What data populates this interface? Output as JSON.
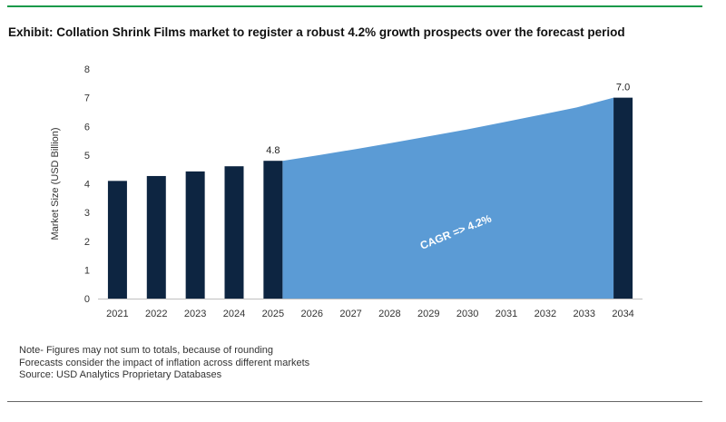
{
  "title": "Exhibit: Collation Shrink Films market to register a robust 4.2% growth prospects over the forecast period",
  "notes": [
    "Note- Figures may not sum to totals, because of rounding",
    "Forecasts consider the impact of inflation across different markets",
    "Source: USD Analytics Proprietary Databases"
  ],
  "colors": {
    "bar": "#0d2541",
    "area": "#5b9bd5",
    "rule": "#1a9a4a",
    "axis_text": "#333333"
  },
  "chart_data": {
    "type": "bar",
    "title": "Exhibit: Collation Shrink Films market to register a robust 4.2% growth prospects over the forecast period",
    "xlabel": "",
    "ylabel": "Market Size (USD Billion)",
    "ylim": [
      0,
      8
    ],
    "yticks": [
      0,
      1,
      2,
      3,
      4,
      5,
      6,
      7,
      8
    ],
    "grid": false,
    "categories": [
      "2021",
      "2022",
      "2023",
      "2024",
      "2025",
      "2026",
      "2027",
      "2028",
      "2029",
      "2030",
      "2031",
      "2032",
      "2033",
      "2034"
    ],
    "bars": [
      {
        "x": "2021",
        "value": 4.1
      },
      {
        "x": "2022",
        "value": 4.27
      },
      {
        "x": "2023",
        "value": 4.43
      },
      {
        "x": "2024",
        "value": 4.61
      },
      {
        "x": "2025",
        "value": 4.8,
        "label": "4.8"
      },
      {
        "x": "2034",
        "value": 7.0,
        "label": "7.0"
      }
    ],
    "area": {
      "from": "2025",
      "to": "2034",
      "values": [
        4.8,
        5.0,
        5.21,
        5.43,
        5.66,
        5.89,
        6.14,
        6.4,
        6.66,
        7.0
      ],
      "annotation": "CAGR => 4.2%"
    }
  }
}
